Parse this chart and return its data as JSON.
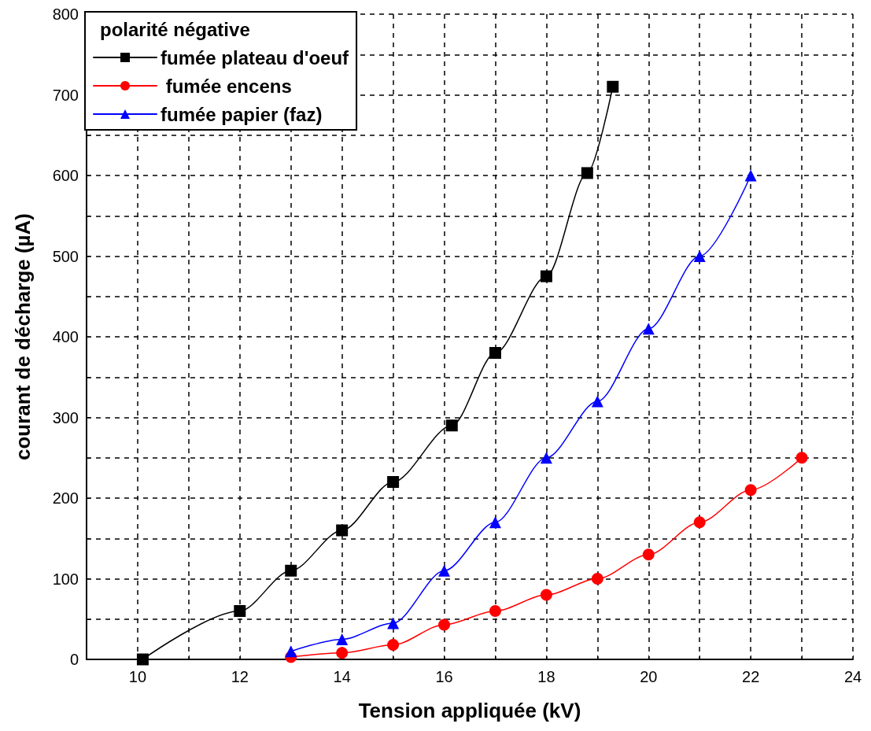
{
  "chart_data": {
    "type": "line",
    "xlabel": "Tension appliquée (kV)",
    "ylabel": "courant de décharge (µA)",
    "legend_title": "polarité négative",
    "series": [
      {
        "name": "fumée plateau d'oeuf",
        "color": "#000000",
        "marker": "square",
        "x": [
          10.1,
          12,
          13,
          14,
          15,
          16.15,
          17,
          18,
          18.8,
          19.3
        ],
        "values": [
          0,
          60,
          110,
          160,
          220,
          290,
          380,
          475,
          603,
          710
        ]
      },
      {
        "name": " fumée encens",
        "color": "#ff0000",
        "marker": "circle",
        "x": [
          13,
          14,
          15,
          16,
          17,
          18,
          19,
          20,
          21,
          22,
          23
        ],
        "values": [
          3,
          8,
          18,
          43,
          60,
          80,
          100,
          130,
          170,
          210,
          250
        ]
      },
      {
        "name": "fumée papier (faz)",
        "color": "#0000ff",
        "marker": "triangle",
        "x": [
          13,
          14,
          15,
          16,
          17,
          18,
          19,
          20,
          21,
          22
        ],
        "values": [
          10,
          25,
          45,
          110,
          170,
          250,
          320,
          410,
          500,
          600
        ]
      }
    ],
    "xlim": [
      9,
      24
    ],
    "xticks": [
      10,
      12,
      14,
      16,
      18,
      20,
      22,
      24
    ],
    "ylim": [
      0,
      800
    ],
    "yticks": [
      0,
      100,
      200,
      300,
      400,
      500,
      600,
      700,
      800
    ],
    "grid": true,
    "legend": "top left"
  }
}
